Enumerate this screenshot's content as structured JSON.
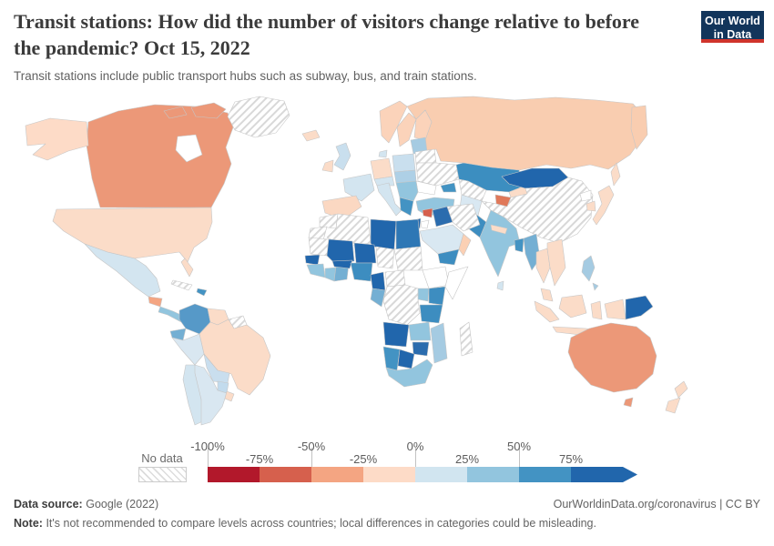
{
  "header": {
    "title": "Transit stations: How did the number of visitors change relative to before the pandemic? Oct 15, 2022",
    "subtitle": "Transit stations include public transport hubs such as subway, bus, and train stations.",
    "logo": {
      "line1": "Our World",
      "line2": "in Data",
      "bg_color": "#12355b",
      "underline_color": "#d0342c"
    }
  },
  "chart_data": {
    "type": "heatmap",
    "subtype": "choropleth world map",
    "title": "Transit stations: How did the number of visitors change relative to before the pandemic?",
    "date": "Oct 15, 2022",
    "unit": "% change in visitors relative to pre-pandemic baseline",
    "legend": {
      "no_data_label": "No data",
      "ticks": [
        "-100%",
        "-75%",
        "-50%",
        "-25%",
        "0%",
        "25%",
        "50%",
        "75%"
      ],
      "bin_colors": [
        "#b2182b",
        "#d6604d",
        "#f4a582",
        "#fddbc7",
        "#d1e5f0",
        "#92c5de",
        "#4393c3",
        "#2166ac"
      ],
      "bins": [
        {
          "range": "-100% to -75%",
          "color": "#b2182b",
          "countries": []
        },
        {
          "range": "-75% to -50%",
          "color": "#d6604d",
          "countries": [
            "Tajikistan",
            "Syria"
          ]
        },
        {
          "range": "-50% to -25%",
          "color": "#f4a582",
          "countries": [
            "Canada",
            "Australia",
            "Guatemala"
          ]
        },
        {
          "range": "-25% to 0%",
          "color": "#fddbc7",
          "countries": [
            "United States",
            "Brazil",
            "Venezuela",
            "Uruguay",
            "Russia",
            "Norway",
            "Sweden",
            "Finland",
            "Iceland",
            "Ireland",
            "Germany",
            "Spain",
            "Portugal",
            "Japan",
            "South Korea",
            "Thailand",
            "Vietnam",
            "Laos",
            "Cambodia",
            "Malaysia",
            "Indonesia",
            "Nepal",
            "Kyrgyzstan",
            "Oman",
            "New Zealand"
          ]
        },
        {
          "range": "0% to 25%",
          "color": "#d1e5f0",
          "countries": [
            "Mexico",
            "Peru",
            "Chile",
            "Argentina",
            "France",
            "Italy",
            "United Kingdom",
            "Poland",
            "Denmark",
            "Saudi Arabia",
            "Afghanistan",
            "Sri Lanka"
          ]
        },
        {
          "range": "25% to 50%",
          "color": "#92c5de",
          "countries": [
            "India",
            "Turkey",
            "Myanmar",
            "Philippines",
            "Ecuador",
            "Bolivia",
            "Paraguay",
            "South Africa",
            "Zambia",
            "Mozambique",
            "Uganda",
            "Ghana",
            "Guinea",
            "Côte d'Ivoire",
            "Gabon",
            "Panama",
            "Baltic states",
            "Balkans"
          ]
        },
        {
          "range": "50% to 75%",
          "color": "#4393c3",
          "countries": [
            "Colombia",
            "Kazakhstan",
            "Pakistan",
            "Bangladesh",
            "Greece",
            "Nigeria",
            "Kenya",
            "Tanzania",
            "Yemen",
            "Namibia",
            "Egypt"
          ]
        },
        {
          "range": "75% and above",
          "color": "#2166ac",
          "countries": [
            "Mongolia",
            "Libya",
            "Iraq",
            "Israel",
            "Mali",
            "Niger",
            "Burkina Faso",
            "Senegal",
            "Cameroon",
            "Angola",
            "Botswana",
            "Zimbabwe",
            "Papua New Guinea"
          ]
        }
      ],
      "no_data_countries": [
        "Greenland",
        "China",
        "Ukraine",
        "Belarus",
        "Iran",
        "Turkmenistan",
        "Uzbekistan",
        "Algeria",
        "Morocco",
        "Western Sahara",
        "Mauritania",
        "Chad",
        "Sudan",
        "Madagascar",
        "Guyana",
        "Suriname",
        "DR Congo",
        "Central African Republic",
        "Cuba"
      ],
      "near_zero_white_countries": [
        "Romania",
        "Jordan",
        "Ethiopia",
        "Somalia",
        "North Korea"
      ]
    },
    "region_fills": {
      "greenland": "no-data",
      "alaska": "#fddbc7",
      "canada": "#ec9878",
      "usa": "#fbdcc8",
      "mexico": "#d3e5f0",
      "guatemala": "#f4a582",
      "panama": "#92c5de",
      "cuba": "no-data",
      "hispaniola": "#4393c3",
      "colombia": "#5699c8",
      "venezuela": "#fbdcc8",
      "guyanas": "no-data",
      "ecuador": "#74afd3",
      "peru": "#d9e7f1",
      "brazil": "#fbdcc8",
      "bolivia": "#c9deee",
      "paraguay": "#c2dbed",
      "chile": "#d3e5f0",
      "argentina": "#d9e7f1",
      "uruguay": "#fbdcc8",
      "iceland": "#fbdcc8",
      "uk": "#c9dfee",
      "ireland": "#fbdcc8",
      "norway": "#fbd3ba",
      "sweden": "#fbd3ba",
      "finland": "#fbd3ba",
      "denmark": "#d3e5f0",
      "germany": "#fbdcc8",
      "france": "#d3e5f0",
      "iberia": "#fbd8c2",
      "italy": "#d3e5f0",
      "alpine": "#d3e5f0",
      "poland": "#c9dfee",
      "central_europe": "#aed0e6",
      "baltics": "#a5cbe2",
      "belarus": "no-data",
      "ukraine": "no-data",
      "romania": "#ffffff",
      "balkans": "#92c5de",
      "greece": "#4393c3",
      "turkey": "#92c5de",
      "caucasus": "#4393c3",
      "russia": "#f9cdb0",
      "kazakhstan": "#3c8ec0",
      "uzbek_turkmen": "no-data",
      "kyrgyzstan": "#fbdcc8",
      "tajikistan": "#e0795a",
      "mongolia": "#2166ac",
      "china": "no-data",
      "japan": "#fbdcc8",
      "south_korea": "#fbdcc8",
      "north_korea": "#ffffff",
      "sakhalin": "#fbdcc8",
      "afghanistan": "#d9e8f2",
      "pakistan": "#3d8dc0",
      "india": "#92c5de",
      "sri_lanka": "#d3e5f0",
      "nepal": "#fbdcc8",
      "bangladesh": "#4393c3",
      "myanmar": "#74afd3",
      "thailand": "#fbdcc8",
      "indochina": "#fbdcc8",
      "malaysia": "#fbdcc8",
      "sumatra": "#fbdcc8",
      "borneo": "#fbdcc8",
      "java": "#fbdcc8",
      "sulawesi": "#fbdcc8",
      "west_papua": "#fbdcc8",
      "png": "#2166ac",
      "philippines": "#a5cbe2",
      "syria": "#d6604d",
      "israel": "#2166ac",
      "jordan": "#ffffff",
      "iraq": "#2b6cae",
      "iran": "no-data",
      "saudi": "#d9e8f2",
      "yemen": "#3d8dc0",
      "oman": "#fbd0b4",
      "morocco": "no-data",
      "wsahara": "no-data",
      "algeria": "no-data",
      "libya": "#2166ac",
      "egypt": "#2e77b5",
      "mauritania": "no-data",
      "mali": "#2166ac",
      "niger": "#2166ac",
      "chad": "no-data",
      "sudan": "no-data",
      "senegal": "#2166ac",
      "guinea": "#92c5de",
      "ivory": "#92c5de",
      "ghana_strip": "#74afd3",
      "burkina": "#2166ac",
      "nigeria": "#3d8dc0",
      "cameroon": "#2166ac",
      "car": "no-data",
      "ethiopia": "#ffffff",
      "somalia": "#ffffff",
      "kenya": "#3d8dc0",
      "uganda": "#92c5de",
      "drc": "no-data",
      "gabon": "#74afd3",
      "tanzania": "#3d8dc0",
      "angola": "#2166ac",
      "zambia": "#92c5de",
      "mozambique": "#a5cbe2",
      "zimbabwe": "#2b6cae",
      "botswana": "#2166ac",
      "namibia": "#4393c3",
      "south_africa": "#92c5de",
      "madagascar": "no-data",
      "australia": "#ec9878",
      "tasmania": "#ec9878",
      "nz": "#fbdcc8"
    }
  },
  "footer": {
    "source_label": "Data source:",
    "source_value": "Google (2022)",
    "link": "OurWorldinData.org/coronavirus | CC BY",
    "note_label": "Note:",
    "note_value": "It's not recommended to compare levels across countries; local differences in categories could be misleading."
  }
}
